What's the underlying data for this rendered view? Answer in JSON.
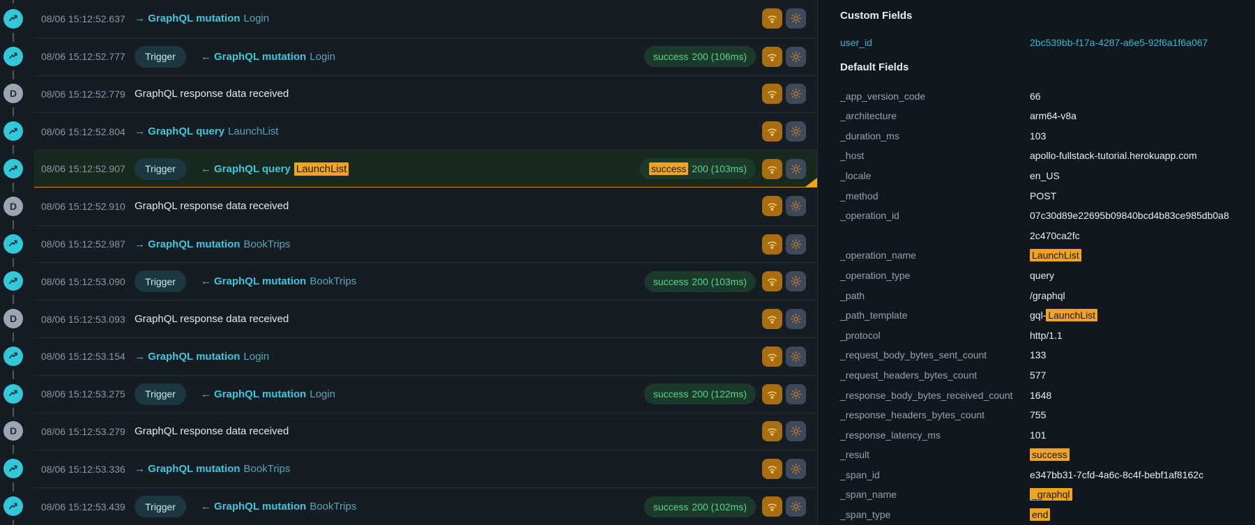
{
  "colors": {
    "accent_teal": "#41c6d8",
    "highlight_orange": "#f2a41f",
    "success_green": "#55d888",
    "selected_row_bg": "#18291f"
  },
  "timeline": {
    "debug_icon_letter": "D",
    "rows": [
      {
        "time": "08/06 15:12:52.637",
        "icon": "network",
        "trigger": false,
        "title_main": "→ GraphQL mutation",
        "title_name": "Login",
        "name_highlighted": false,
        "status": null,
        "selected": false
      },
      {
        "time": "08/06 15:12:52.777",
        "icon": "network",
        "trigger": true,
        "trigger_label": "Trigger",
        "title_main": "← GraphQL mutation",
        "title_name": "Login",
        "name_highlighted": false,
        "status": {
          "result": "success",
          "rest": "200 (106ms)",
          "result_highlighted": false
        },
        "selected": false
      },
      {
        "time": "08/06 15:12:52.779",
        "icon": "debug",
        "trigger": false,
        "plain_text": "GraphQL response data received",
        "status": null,
        "selected": false
      },
      {
        "time": "08/06 15:12:52.804",
        "icon": "network",
        "trigger": false,
        "title_main": "→ GraphQL query",
        "title_name": "LaunchList",
        "name_highlighted": false,
        "status": null,
        "selected": false
      },
      {
        "time": "08/06 15:12:52.907",
        "icon": "network",
        "trigger": true,
        "trigger_label": "Trigger",
        "title_main": "← GraphQL query",
        "title_name": "LaunchList",
        "name_highlighted": true,
        "status": {
          "result": "success",
          "rest": "200 (103ms)",
          "result_highlighted": true
        },
        "selected": true
      },
      {
        "time": "08/06 15:12:52.910",
        "icon": "debug",
        "trigger": false,
        "plain_text": "GraphQL response data received",
        "status": null,
        "selected": false
      },
      {
        "time": "08/06 15:12:52.987",
        "icon": "network",
        "trigger": false,
        "title_main": "→ GraphQL mutation",
        "title_name": "BookTrips",
        "name_highlighted": false,
        "status": null,
        "selected": false
      },
      {
        "time": "08/06 15:12:53.090",
        "icon": "network",
        "trigger": true,
        "trigger_label": "Trigger",
        "title_main": "← GraphQL mutation",
        "title_name": "BookTrips",
        "name_highlighted": false,
        "status": {
          "result": "success",
          "rest": "200 (103ms)",
          "result_highlighted": false
        },
        "selected": false
      },
      {
        "time": "08/06 15:12:53.093",
        "icon": "debug",
        "trigger": false,
        "plain_text": "GraphQL response data received",
        "status": null,
        "selected": false
      },
      {
        "time": "08/06 15:12:53.154",
        "icon": "network",
        "trigger": false,
        "title_main": "→ GraphQL mutation",
        "title_name": "Login",
        "name_highlighted": false,
        "status": null,
        "selected": false
      },
      {
        "time": "08/06 15:12:53.275",
        "icon": "network",
        "trigger": true,
        "trigger_label": "Trigger",
        "title_main": "← GraphQL mutation",
        "title_name": "Login",
        "name_highlighted": false,
        "status": {
          "result": "success",
          "rest": "200 (122ms)",
          "result_highlighted": false
        },
        "selected": false
      },
      {
        "time": "08/06 15:12:53.279",
        "icon": "debug",
        "trigger": false,
        "plain_text": "GraphQL response data received",
        "status": null,
        "selected": false
      },
      {
        "time": "08/06 15:12:53.336",
        "icon": "network",
        "trigger": false,
        "title_main": "→ GraphQL mutation",
        "title_name": "BookTrips",
        "name_highlighted": false,
        "status": null,
        "selected": false
      },
      {
        "time": "08/06 15:12:53.439",
        "icon": "network",
        "trigger": true,
        "trigger_label": "Trigger",
        "title_main": "← GraphQL mutation",
        "title_name": "BookTrips",
        "name_highlighted": false,
        "status": {
          "result": "success",
          "rest": "200 (102ms)",
          "result_highlighted": false
        },
        "selected": false
      }
    ]
  },
  "details": {
    "custom_fields_title": "Custom Fields",
    "custom_fields": [
      {
        "label": "user_id",
        "link": true,
        "value": [
          {
            "text": "2bc539bb-f17a-4287-a6e5-92f6a1f6a067"
          }
        ]
      }
    ],
    "default_fields_title": "Default Fields",
    "default_fields": [
      {
        "label": "_app_version_code",
        "value": [
          {
            "text": "66"
          }
        ]
      },
      {
        "label": "_architecture",
        "value": [
          {
            "text": "arm64-v8a"
          }
        ]
      },
      {
        "label": "_duration_ms",
        "value": [
          {
            "text": "103"
          }
        ]
      },
      {
        "label": "_host",
        "value": [
          {
            "text": "apollo-fullstack-tutorial.herokuapp.com"
          }
        ]
      },
      {
        "label": "_locale",
        "value": [
          {
            "text": "en_US"
          }
        ]
      },
      {
        "label": "_method",
        "value": [
          {
            "text": "POST"
          }
        ]
      },
      {
        "label": "_operation_id",
        "value": [
          {
            "text": "07c30d89e22695b09840bcd4b83ce985db0a8\n2c470ca2fc"
          }
        ]
      },
      {
        "label": "_operation_name",
        "value": [
          {
            "text": "LaunchList",
            "highlight": true
          }
        ]
      },
      {
        "label": "_operation_type",
        "value": [
          {
            "text": "query"
          }
        ]
      },
      {
        "label": "_path",
        "value": [
          {
            "text": "/graphql"
          }
        ]
      },
      {
        "label": "_path_template",
        "value": [
          {
            "text": "gql-"
          },
          {
            "text": "LaunchList",
            "highlight": true
          }
        ]
      },
      {
        "label": "_protocol",
        "value": [
          {
            "text": "http/1.1"
          }
        ]
      },
      {
        "label": "_request_body_bytes_sent_count",
        "value": [
          {
            "text": "133"
          }
        ]
      },
      {
        "label": "_request_headers_bytes_count",
        "value": [
          {
            "text": "577"
          }
        ]
      },
      {
        "label": "_response_body_bytes_received_count",
        "value": [
          {
            "text": "1648"
          }
        ]
      },
      {
        "label": "_response_headers_bytes_count",
        "value": [
          {
            "text": "755"
          }
        ]
      },
      {
        "label": "_response_latency_ms",
        "value": [
          {
            "text": "101"
          }
        ]
      },
      {
        "label": "_result",
        "value": [
          {
            "text": "success",
            "highlight": true
          }
        ]
      },
      {
        "label": "_span_id",
        "value": [
          {
            "text": "e347bb31-7cfd-4a6c-8c4f-bebf1af8162c"
          }
        ]
      },
      {
        "label": "_span_name",
        "value": [
          {
            "text": "_graphql",
            "highlight": true
          }
        ]
      },
      {
        "label": "_span_type",
        "value": [
          {
            "text": "end",
            "highlight": true
          }
        ]
      }
    ]
  }
}
